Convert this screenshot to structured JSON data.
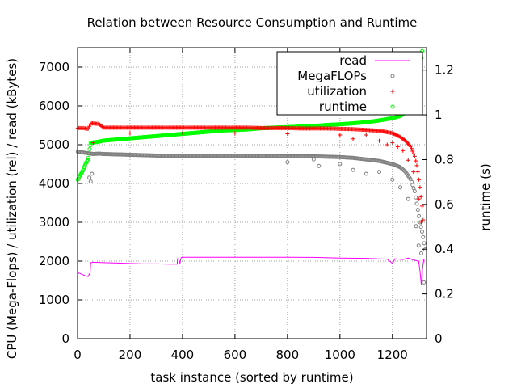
{
  "chart_data": {
    "type": "scatter",
    "title": "Relation between Resource Consumption and Runtime",
    "xlabel": "task instance (sorted by runtime)",
    "ylabel": "CPU (Mega-Flops) / utilization (rel) / read (kBytes)",
    "y2label": "runtime (s)",
    "xlim": [
      0,
      1330
    ],
    "ylim": [
      0,
      7500
    ],
    "y2lim": [
      0,
      1.3
    ],
    "x_ticks": [
      0,
      200,
      400,
      600,
      800,
      1000,
      1200
    ],
    "y_ticks": [
      0,
      1000,
      2000,
      3000,
      4000,
      5000,
      6000,
      7000
    ],
    "y2_ticks": [
      0,
      0.2,
      0.4,
      0.6,
      0.8,
      1,
      1.2
    ],
    "legend_position": "top-right",
    "grid": true,
    "series": [
      {
        "name": "read",
        "style": "line",
        "color": "#ff00ff",
        "axis": "y",
        "points": [
          [
            1,
            1700
          ],
          [
            10,
            1680
          ],
          [
            20,
            1650
          ],
          [
            30,
            1620
          ],
          [
            40,
            1600
          ],
          [
            45,
            1660
          ],
          [
            48,
            1700
          ],
          [
            50,
            1960
          ],
          [
            60,
            1970
          ],
          [
            100,
            1960
          ],
          [
            150,
            1950
          ],
          [
            200,
            1940
          ],
          [
            250,
            1930
          ],
          [
            300,
            1930
          ],
          [
            350,
            1920
          ],
          [
            380,
            1920
          ],
          [
            381,
            2060
          ],
          [
            385,
            2060
          ],
          [
            390,
            1950
          ],
          [
            395,
            2090
          ],
          [
            400,
            2100
          ],
          [
            500,
            2100
          ],
          [
            600,
            2100
          ],
          [
            700,
            2100
          ],
          [
            800,
            2100
          ],
          [
            900,
            2095
          ],
          [
            1000,
            2080
          ],
          [
            1100,
            2070
          ],
          [
            1180,
            2050
          ],
          [
            1200,
            1940
          ],
          [
            1210,
            2060
          ],
          [
            1240,
            2040
          ],
          [
            1260,
            2080
          ],
          [
            1280,
            2030
          ],
          [
            1300,
            2000
          ],
          [
            1305,
            1750
          ],
          [
            1310,
            1400
          ],
          [
            1315,
            1800
          ],
          [
            1320,
            2060
          ]
        ]
      },
      {
        "name": "MegaFLOPs",
        "style": "points",
        "marker": "circle",
        "color": "#808080",
        "axis": "y",
        "points": [
          [
            1,
            4820
          ],
          [
            20,
            4800
          ],
          [
            40,
            4780
          ],
          [
            60,
            4760
          ],
          [
            80,
            4770
          ],
          [
            100,
            4760
          ],
          [
            150,
            4750
          ],
          [
            200,
            4740
          ],
          [
            250,
            4730
          ],
          [
            300,
            4720
          ],
          [
            350,
            4720
          ],
          [
            400,
            4720
          ],
          [
            450,
            4720
          ],
          [
            500,
            4720
          ],
          [
            550,
            4720
          ],
          [
            600,
            4720
          ],
          [
            650,
            4720
          ],
          [
            700,
            4710
          ],
          [
            750,
            4710
          ],
          [
            800,
            4700
          ],
          [
            850,
            4700
          ],
          [
            900,
            4700
          ],
          [
            950,
            4690
          ],
          [
            1000,
            4680
          ],
          [
            1050,
            4660
          ],
          [
            1100,
            4620
          ],
          [
            1150,
            4580
          ],
          [
            1200,
            4500
          ],
          [
            1230,
            4420
          ],
          [
            1250,
            4300
          ],
          [
            1270,
            4100
          ],
          [
            1285,
            3800
          ],
          [
            1295,
            3400
          ],
          [
            1305,
            3000
          ],
          [
            1315,
            2700
          ],
          [
            1320,
            2500
          ],
          [
            1325,
            2300
          ]
        ],
        "outliers": [
          [
            50,
            4050
          ],
          [
            45,
            4150
          ],
          [
            55,
            4250
          ],
          [
            800,
            4550
          ],
          [
            900,
            4620
          ],
          [
            920,
            4450
          ],
          [
            1000,
            4500
          ],
          [
            1050,
            4350
          ],
          [
            1100,
            4250
          ],
          [
            1150,
            4300
          ],
          [
            1200,
            4100
          ],
          [
            1230,
            3900
          ],
          [
            1260,
            3600
          ],
          [
            1290,
            2900
          ],
          [
            1300,
            2400
          ],
          [
            1310,
            2200
          ],
          [
            1320,
            1450
          ]
        ]
      },
      {
        "name": "utilization",
        "style": "points",
        "marker": "plus",
        "color": "#ff0000",
        "axis": "y",
        "points": [
          [
            1,
            5430
          ],
          [
            20,
            5430
          ],
          [
            30,
            5420
          ],
          [
            40,
            5400
          ],
          [
            50,
            5550
          ],
          [
            60,
            5550
          ],
          [
            70,
            5540
          ],
          [
            80,
            5540
          ],
          [
            100,
            5440
          ],
          [
            150,
            5440
          ],
          [
            200,
            5440
          ],
          [
            250,
            5440
          ],
          [
            300,
            5440
          ],
          [
            350,
            5440
          ],
          [
            400,
            5440
          ],
          [
            450,
            5440
          ],
          [
            500,
            5440
          ],
          [
            550,
            5440
          ],
          [
            600,
            5440
          ],
          [
            650,
            5440
          ],
          [
            700,
            5430
          ],
          [
            750,
            5430
          ],
          [
            800,
            5430
          ],
          [
            850,
            5420
          ],
          [
            900,
            5420
          ],
          [
            950,
            5420
          ],
          [
            1000,
            5410
          ],
          [
            1050,
            5400
          ],
          [
            1100,
            5380
          ],
          [
            1150,
            5360
          ],
          [
            1200,
            5300
          ],
          [
            1230,
            5200
          ],
          [
            1250,
            5100
          ],
          [
            1270,
            4950
          ],
          [
            1285,
            4700
          ],
          [
            1295,
            4400
          ],
          [
            1305,
            3900
          ],
          [
            1315,
            3300
          ],
          [
            1320,
            2700
          ]
        ],
        "outliers": [
          [
            60,
            5050
          ],
          [
            200,
            5300
          ],
          [
            400,
            5300
          ],
          [
            600,
            5300
          ],
          [
            800,
            5280
          ],
          [
            1000,
            5250
          ],
          [
            1050,
            5150
          ],
          [
            1100,
            5250
          ],
          [
            1150,
            5100
          ],
          [
            1180,
            5000
          ],
          [
            1200,
            5050
          ],
          [
            1220,
            4950
          ],
          [
            1240,
            4850
          ],
          [
            1260,
            4600
          ],
          [
            1280,
            4300
          ],
          [
            1300,
            3600
          ],
          [
            1310,
            3000
          ]
        ]
      },
      {
        "name": "runtime",
        "style": "points",
        "marker": "circle",
        "color": "#00ff00",
        "axis": "y2",
        "points": [
          [
            1,
            0.71
          ],
          [
            10,
            0.73
          ],
          [
            20,
            0.75
          ],
          [
            30,
            0.78
          ],
          [
            40,
            0.8
          ],
          [
            45,
            0.84
          ],
          [
            50,
            0.875
          ],
          [
            80,
            0.88
          ],
          [
            100,
            0.885
          ],
          [
            150,
            0.89
          ],
          [
            200,
            0.895
          ],
          [
            250,
            0.9
          ],
          [
            300,
            0.905
          ],
          [
            350,
            0.91
          ],
          [
            400,
            0.915
          ],
          [
            450,
            0.92
          ],
          [
            500,
            0.925
          ],
          [
            550,
            0.93
          ],
          [
            600,
            0.932
          ],
          [
            650,
            0.935
          ],
          [
            700,
            0.94
          ],
          [
            750,
            0.943
          ],
          [
            800,
            0.945
          ],
          [
            850,
            0.948
          ],
          [
            900,
            0.95
          ],
          [
            950,
            0.955
          ],
          [
            1000,
            0.958
          ],
          [
            1050,
            0.962
          ],
          [
            1100,
            0.967
          ],
          [
            1150,
            0.975
          ],
          [
            1200,
            0.985
          ],
          [
            1230,
            0.995
          ],
          [
            1250,
            1.01
          ],
          [
            1270,
            1.04
          ],
          [
            1285,
            1.08
          ],
          [
            1295,
            1.12
          ],
          [
            1300,
            1.16
          ],
          [
            1305,
            1.2
          ],
          [
            1310,
            1.24
          ],
          [
            1313,
            1.28
          ],
          [
            1315,
            1.3
          ]
        ]
      }
    ]
  }
}
